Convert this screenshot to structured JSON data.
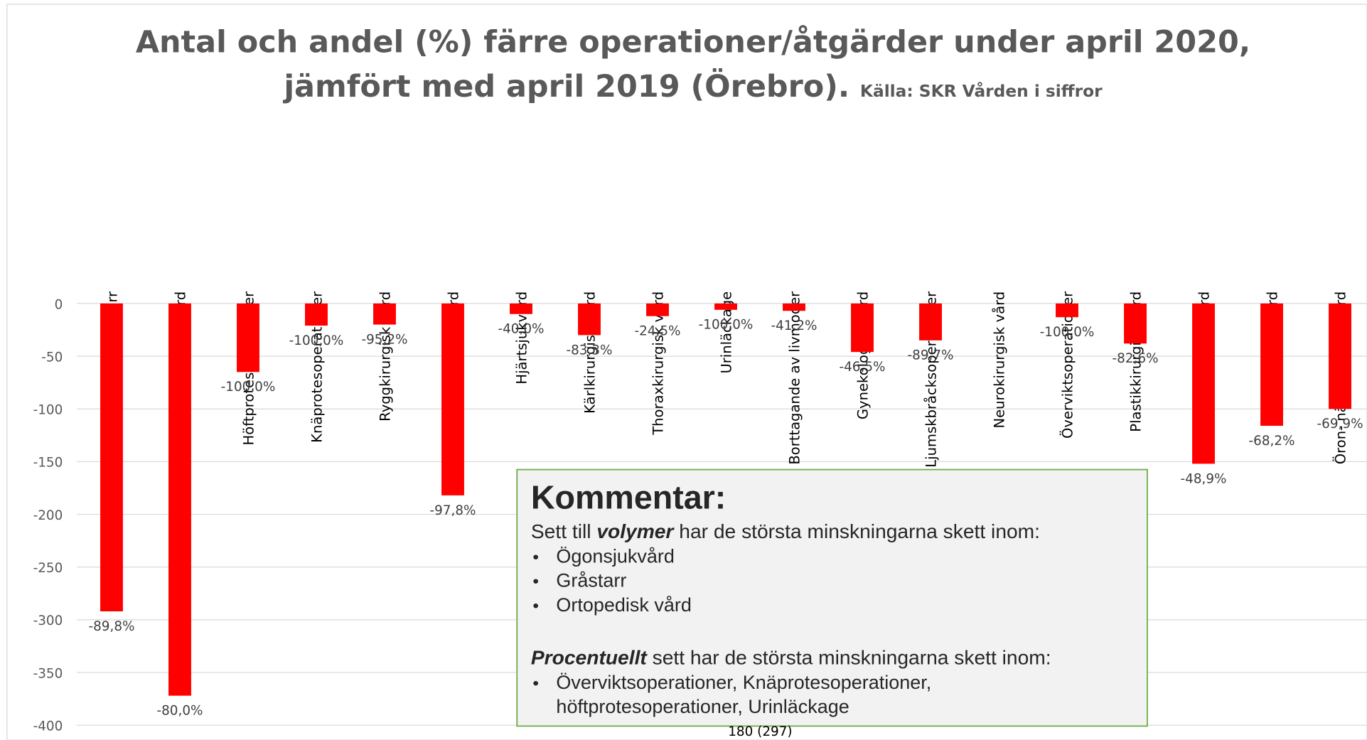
{
  "chart_data": {
    "type": "bar",
    "title_lines": [
      "Antal och andel (%) färre operationer/åtgärder under april 2020,",
      "jämfört med april 2019 (Örebro)."
    ],
    "source": "Källa: SKR Vården i siffror",
    "categories": [
      "Gråstarr",
      "Ögonsjukvård",
      "Höftprotesoperationer",
      "Knäprotesoperationer",
      "Ryggkirurgisk vård",
      "Ortopedisk vård",
      "Hjärtsjukvård",
      "Kärlkirurgisk vård",
      "Thoraxkirurgisk vård",
      "Urinläckage",
      "Borttagande av livmoder",
      "Gynekologisk vård",
      "Ljumskbråcksoperationer",
      "Neurokirurgisk vård",
      "Överviktsoperationer",
      "Plastikkirurgisk vård",
      "Kirurgisk vård",
      "Urologisk vård",
      "Öron- näsa- halssjukvård"
    ],
    "values": [
      -292,
      -372,
      -65,
      -21,
      -20,
      -182,
      -10,
      -30,
      -12,
      -6,
      -7,
      -46,
      -35,
      0,
      -13,
      -38,
      -152,
      -116,
      -100
    ],
    "percent_labels": [
      "-89,8%",
      "-80,0%",
      "-100,0%",
      "-100,0%",
      "-95,2%",
      "-97,8%",
      "-40,0%",
      "-83,3%",
      "-24,5%",
      "-100,0%",
      "-41,2%",
      "-46,5%",
      "-89,7%",
      null,
      "-100,0%",
      "-82,6%",
      "-48,9%",
      "-68,2%",
      "-69,9%"
    ],
    "color": "#ff0000",
    "ylim": [
      -400,
      0
    ],
    "yticks": [
      0,
      -50,
      -100,
      -150,
      -200,
      -250,
      -300,
      -350,
      -400
    ],
    "grid": true
  },
  "comment": {
    "heading": "Kommentar:",
    "line1": [
      "Sett till ",
      "volymer",
      " har de största minskningarna skett inom:"
    ],
    "bullets1": [
      "Ögonsjukvård",
      "Gråstarr",
      "Ortopedisk vård"
    ],
    "line2": [
      "Procentuellt",
      " sett har de största minskningarna skett inom:"
    ],
    "bullets2": [
      [
        "Överviktsoperationer, Knäprotesoperationer,",
        "höftprotesoperationer, Urinläckage"
      ]
    ]
  },
  "footer": "180 (297)"
}
